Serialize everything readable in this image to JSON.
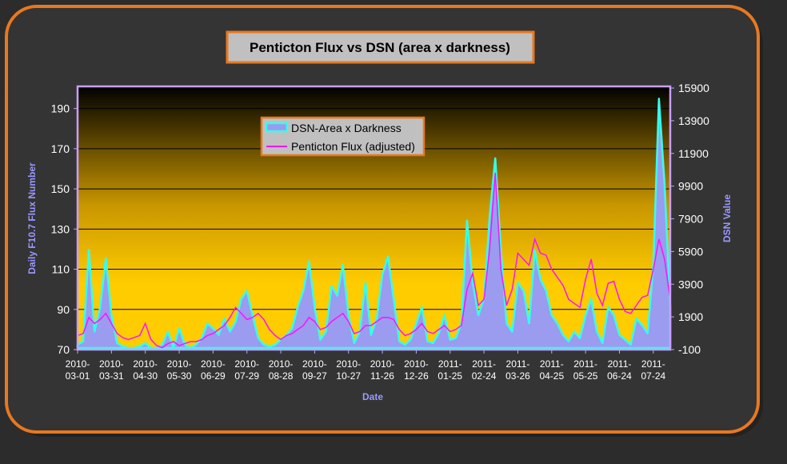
{
  "chart_data": {
    "type": "area-line",
    "title": "Penticton Flux vs DSN (area x darkness)",
    "x_label": "Date",
    "y_label": "Daily F10.7 Flux Number",
    "y2_label": "DSN Value",
    "x": [
      "2010-03-01",
      "2010-03-06",
      "2010-03-11",
      "2010-03-16",
      "2010-03-21",
      "2010-03-26",
      "2010-03-31",
      "2010-04-05",
      "2010-04-10",
      "2010-04-15",
      "2010-04-20",
      "2010-04-25",
      "2010-04-30",
      "2010-05-05",
      "2010-05-10",
      "2010-05-15",
      "2010-05-20",
      "2010-05-25",
      "2010-05-30",
      "2010-06-04",
      "2010-06-09",
      "2010-06-14",
      "2010-06-19",
      "2010-06-24",
      "2010-06-29",
      "2010-07-04",
      "2010-07-09",
      "2010-07-14",
      "2010-07-19",
      "2010-07-24",
      "2010-07-29",
      "2010-08-03",
      "2010-08-08",
      "2010-08-13",
      "2010-08-18",
      "2010-08-23",
      "2010-08-28",
      "2010-09-02",
      "2010-09-07",
      "2010-09-12",
      "2010-09-17",
      "2010-09-22",
      "2010-09-27",
      "2010-10-02",
      "2010-10-07",
      "2010-10-12",
      "2010-10-17",
      "2010-10-22",
      "2010-10-27",
      "2010-11-01",
      "2010-11-06",
      "2010-11-11",
      "2010-11-16",
      "2010-11-21",
      "2010-11-26",
      "2010-12-01",
      "2010-12-06",
      "2010-12-11",
      "2010-12-16",
      "2010-12-21",
      "2010-12-26",
      "2010-12-31",
      "2011-01-05",
      "2011-01-10",
      "2011-01-15",
      "2011-01-20",
      "2011-01-25",
      "2011-01-30",
      "2011-02-04",
      "2011-02-09",
      "2011-02-14",
      "2011-02-19",
      "2011-02-24",
      "2011-03-01",
      "2011-03-06",
      "2011-03-11",
      "2011-03-16",
      "2011-03-21",
      "2011-03-26",
      "2011-03-31",
      "2011-04-05",
      "2011-04-10",
      "2011-04-15",
      "2011-04-20",
      "2011-04-25",
      "2011-04-30",
      "2011-05-05",
      "2011-05-10",
      "2011-05-15",
      "2011-05-20",
      "2011-05-25",
      "2011-05-30",
      "2011-06-04",
      "2011-06-09",
      "2011-06-14",
      "2011-06-19",
      "2011-06-24",
      "2011-06-29",
      "2011-07-04",
      "2011-07-09",
      "2011-07-14",
      "2011-07-19",
      "2011-07-24",
      "2011-07-29",
      "2011-08-03",
      "2011-08-08"
    ],
    "series": [
      {
        "name": "DSN-Area x Darkness",
        "type": "area",
        "axis": "y2",
        "color": "#9b9bf0",
        "edge_color": "#33ffee",
        "values": [
          200,
          400,
          6000,
          1000,
          2500,
          5500,
          2000,
          300,
          100,
          0,
          0,
          100,
          300,
          0,
          0,
          200,
          1000,
          0,
          1200,
          200,
          0,
          200,
          600,
          1500,
          1200,
          800,
          1800,
          1000,
          1600,
          3000,
          3500,
          2000,
          600,
          200,
          100,
          200,
          500,
          800,
          1200,
          2500,
          3500,
          5300,
          2500,
          500,
          1000,
          3800,
          3200,
          5100,
          2000,
          300,
          1000,
          4000,
          800,
          1800,
          4500,
          5600,
          3000,
          400,
          200,
          500,
          1500,
          2500,
          400,
          300,
          900,
          2000,
          500,
          600,
          1500,
          7800,
          4000,
          2000,
          3000,
          8000,
          11600,
          6000,
          1500,
          1000,
          4000,
          3500,
          1500,
          6000,
          4200,
          3500,
          2000,
          1500,
          800,
          400,
          1000,
          600,
          2000,
          3000,
          1000,
          300,
          2500,
          2000,
          800,
          500,
          200,
          1800,
          1400,
          900,
          5000,
          15250,
          10000,
          2500
        ]
      },
      {
        "name": "Penticton Flux (adjusted)",
        "type": "line",
        "axis": "y",
        "color": "#ff10ff",
        "values": [
          77,
          78,
          86,
          83,
          85,
          88,
          83,
          78,
          76,
          75,
          76,
          77,
          83,
          75,
          72,
          71,
          73,
          74,
          72,
          73,
          74,
          74,
          75,
          77,
          78,
          80,
          82,
          86,
          91,
          88,
          85,
          86,
          88,
          85,
          80,
          77,
          75,
          77,
          78,
          80,
          82,
          86,
          84,
          80,
          81,
          84,
          86,
          88,
          84,
          78,
          79,
          82,
          82,
          84,
          86,
          86,
          85,
          80,
          77,
          78,
          80,
          83,
          79,
          78,
          80,
          82,
          79,
          80,
          82,
          100,
          108,
          92,
          95,
          120,
          158,
          110,
          92,
          100,
          118,
          115,
          112,
          125,
          118,
          117,
          110,
          106,
          102,
          95,
          93,
          91,
          105,
          115,
          98,
          92,
          103,
          104,
          95,
          89,
          88,
          92,
          96,
          97,
          110,
          125,
          115,
          95
        ]
      }
    ],
    "xlim": [
      "2010-03-01",
      "2011-08-08"
    ],
    "xticks": [
      "2010-03-01",
      "2010-03-31",
      "2010-04-30",
      "2010-05-30",
      "2010-06-29",
      "2010-07-29",
      "2010-08-28",
      "2010-09-27",
      "2010-10-27",
      "2010-11-26",
      "2010-12-26",
      "2011-01-25",
      "2011-02-24",
      "2011-03-26",
      "2011-04-25",
      "2011-05-25",
      "2011-06-24",
      "2011-07-24"
    ],
    "ylim": [
      70,
      201
    ],
    "yticks": [
      70,
      90,
      110,
      130,
      150,
      170,
      190
    ],
    "y2lim": [
      -100,
      16000
    ],
    "y2ticks": [
      -100,
      1900,
      3900,
      5900,
      7900,
      9900,
      11900,
      13900,
      15900
    ],
    "grid": true
  }
}
